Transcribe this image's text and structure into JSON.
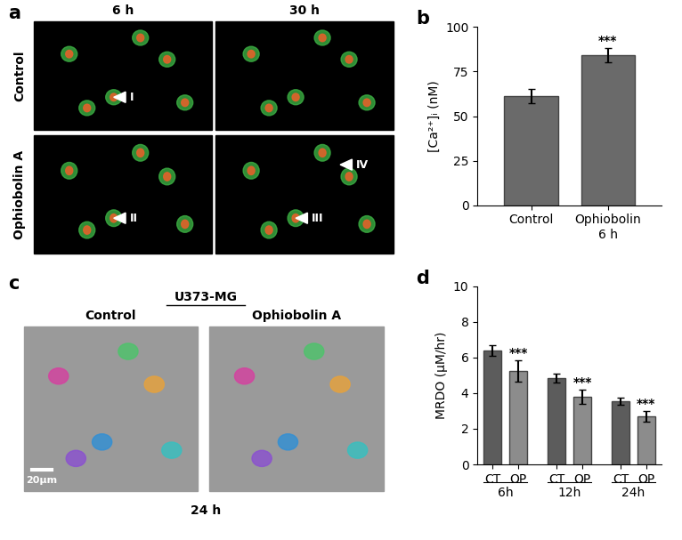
{
  "chart_data": [
    {
      "type": "bar",
      "title": "b",
      "categories": [
        "Control",
        "Ophiobolin\n6 h"
      ],
      "values": [
        61,
        84
      ],
      "errors": [
        4,
        4
      ],
      "colors": [
        "#6a6a6a",
        "#6a6a6a"
      ],
      "significance": [
        null,
        "***"
      ],
      "y_label": "[Ca²⁺]ᵢ (nM)",
      "ylim": [
        0,
        100
      ],
      "yticks": [
        0,
        25,
        50,
        75,
        100
      ],
      "grid": false
    },
    {
      "type": "bar",
      "title": "d",
      "categories": [
        "CT",
        "OP",
        "CT",
        "OP",
        "CT",
        "OP"
      ],
      "groups": [
        "6h",
        "12h",
        "24h"
      ],
      "values": [
        6.4,
        5.25,
        4.85,
        3.8,
        3.55,
        2.7
      ],
      "errors": [
        0.3,
        0.6,
        0.25,
        0.4,
        0.2,
        0.3
      ],
      "colors": [
        "#5c5c5c",
        "#8c8c8c",
        "#5c5c5c",
        "#8c8c8c",
        "#5c5c5c",
        "#8c8c8c"
      ],
      "significance": [
        null,
        "***",
        null,
        "***",
        null,
        "***"
      ],
      "y_label": "MRDO (μM/hr)",
      "ylim": [
        0,
        10
      ],
      "yticks": [
        0,
        2,
        4,
        6,
        8,
        10
      ],
      "grid": false
    }
  ],
  "images": [
    {
      "panel": "a",
      "columns": [
        "6 h",
        "30 h"
      ],
      "rows": [
        "Control",
        "Ophiobolin A"
      ],
      "cells": [
        [
          [
            "I"
          ],
          []
        ],
        [
          [
            "II"
          ],
          [
            "III",
            "IV"
          ]
        ]
      ]
    },
    {
      "panel": "c",
      "header": "U373-MG",
      "columns": [
        "Control",
        "Ophiobolin A"
      ],
      "scale_bar": "20μm",
      "footer": "24 h"
    }
  ]
}
